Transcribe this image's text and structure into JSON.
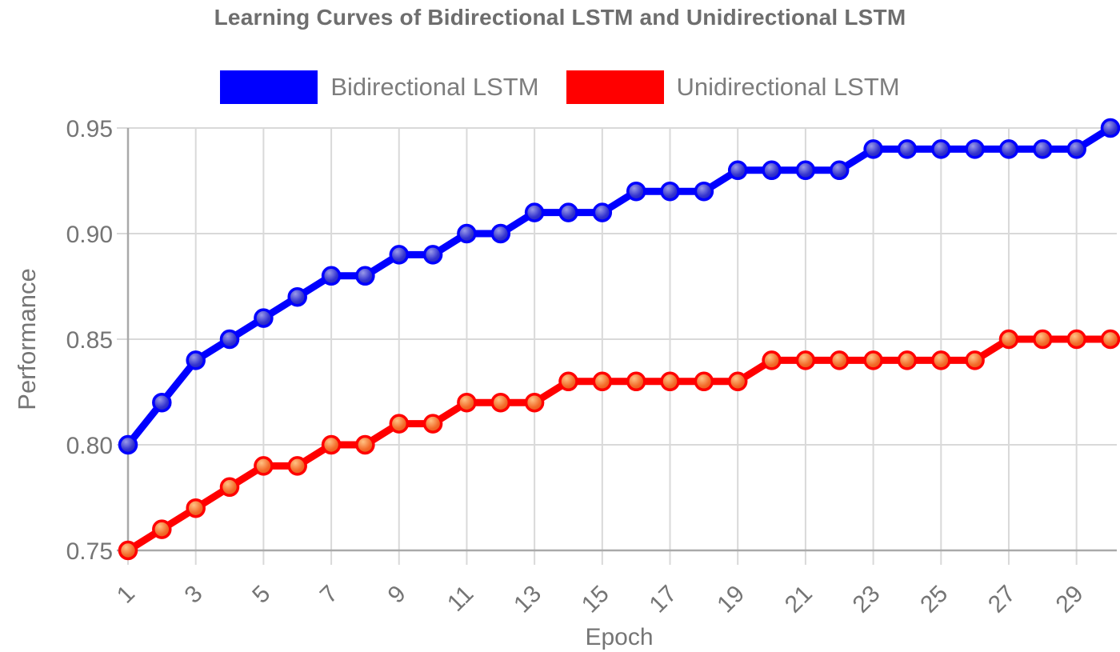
{
  "header": {
    "title": "Learning Curves of Bidirectional LSTM and Unidirectional LSTM"
  },
  "legend": {
    "position": "top",
    "items": [
      {
        "label": "Bidirectional LSTM",
        "color": "#0000ff"
      },
      {
        "label": "Unidirectional LSTM",
        "color": "#ff0000"
      }
    ]
  },
  "axes": {
    "xlabel": "Epoch",
    "ylabel": "Performance"
  },
  "chart_data": {
    "type": "line",
    "title": "Learning Curves of Bidirectional LSTM and Unidirectional LSTM",
    "xlabel": "Epoch",
    "ylabel": "Performance",
    "x": [
      1,
      2,
      3,
      4,
      5,
      6,
      7,
      8,
      9,
      10,
      11,
      12,
      13,
      14,
      15,
      16,
      17,
      18,
      19,
      20,
      21,
      22,
      23,
      24,
      25,
      26,
      27,
      28,
      29,
      30
    ],
    "xticks": [
      1,
      3,
      5,
      7,
      9,
      11,
      13,
      15,
      17,
      19,
      21,
      23,
      25,
      27,
      29
    ],
    "yticks": [
      0.75,
      0.8,
      0.85,
      0.9,
      0.95
    ],
    "ytick_labels": [
      "0.75",
      "0.80",
      "0.85",
      "0.90",
      "0.95"
    ],
    "xlim": [
      1,
      30
    ],
    "ylim": [
      0.75,
      0.95
    ],
    "grid": true,
    "legend_position": "top",
    "series": [
      {
        "name": "Bidirectional LSTM",
        "color": "#0000ff",
        "marker": "circle",
        "values": [
          0.8,
          0.82,
          0.84,
          0.85,
          0.86,
          0.87,
          0.88,
          0.88,
          0.89,
          0.89,
          0.9,
          0.9,
          0.91,
          0.91,
          0.91,
          0.92,
          0.92,
          0.92,
          0.93,
          0.93,
          0.93,
          0.93,
          0.94,
          0.94,
          0.94,
          0.94,
          0.94,
          0.94,
          0.94,
          0.95
        ]
      },
      {
        "name": "Unidirectional LSTM",
        "color": "#ff0000",
        "marker": "circle",
        "values": [
          0.75,
          0.76,
          0.77,
          0.78,
          0.79,
          0.79,
          0.8,
          0.8,
          0.81,
          0.81,
          0.82,
          0.82,
          0.82,
          0.83,
          0.83,
          0.83,
          0.83,
          0.83,
          0.83,
          0.84,
          0.84,
          0.84,
          0.84,
          0.84,
          0.84,
          0.84,
          0.85,
          0.85,
          0.85,
          0.85
        ]
      }
    ]
  },
  "colors": {
    "series_blue": "#0000ff",
    "series_red": "#ff0000",
    "grid": "#d9d9d9",
    "axis_spine": "#a9a9a9",
    "tick_text": "#757575",
    "title_text": "#6e6e6e",
    "legend_text": "#7d7d7d",
    "marker_blue_center": "#2a2ac0",
    "marker_red_center": "#ee6f2d"
  }
}
